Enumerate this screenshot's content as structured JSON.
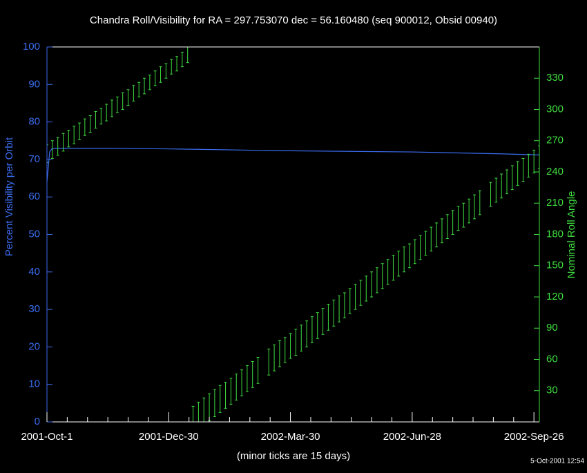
{
  "chart_data": {
    "type": "line",
    "title": "Chandra Roll/Visibility for RA = 297.753070 dec = 56.160480 (seq 900012, Obsid 00940)",
    "xlabel": "(minor ticks are 15 days)",
    "ylabel": "Percent Visibility per Orbit",
    "y2label": "Nominal Roll Angle",
    "footnote": "5-Oct-2001 12:54",
    "xlim": [
      "2001-10-01",
      "2002-09-30"
    ],
    "xticks": [
      {
        "value": "2001-10-01",
        "label": "2001-Oct-1"
      },
      {
        "value": "2001-12-30",
        "label": "2001-Dec-30"
      },
      {
        "value": "2002-03-30",
        "label": "2002-Mar-30"
      },
      {
        "value": "2002-06-28",
        "label": "2002-Jun-28"
      },
      {
        "value": "2002-09-26",
        "label": "2002-Sep-26"
      }
    ],
    "xminor_ticks": [
      "2001-10-16",
      "2001-10-31",
      "2001-11-15",
      "2001-11-30",
      "2001-12-15",
      "2002-01-14",
      "2002-01-29",
      "2002-02-13",
      "2002-02-28",
      "2002-03-15",
      "2002-04-14",
      "2002-04-29",
      "2002-05-14",
      "2002-05-29",
      "2002-06-13",
      "2002-07-13",
      "2002-07-28",
      "2002-08-12",
      "2002-08-27",
      "2002-09-11"
    ],
    "ylim": [
      0,
      100
    ],
    "yticks": [
      0,
      10,
      20,
      30,
      40,
      50,
      60,
      70,
      80,
      90,
      100
    ],
    "y2lim": [
      0,
      360
    ],
    "y2ticks": [
      30,
      60,
      90,
      120,
      150,
      180,
      210,
      240,
      270,
      300,
      330
    ],
    "y_color": "#3b6df0",
    "y2_color": "#3fdc3f",
    "series": [
      {
        "type": "line",
        "axis": "y",
        "color": "#3b6df0",
        "x": [
          "2001-10-01",
          "2001-10-03",
          "2001-10-05",
          "2001-11-15",
          "2002-01-01",
          "2002-03-30",
          "2002-06-28",
          "2002-09-01",
          "2002-09-30"
        ],
        "values": [
          64,
          72,
          73,
          73,
          72.8,
          72.3,
          72,
          71.5,
          71.2
        ]
      },
      {
        "type": "range",
        "axis": "y2",
        "color": "#3fdc3f",
        "x": [
          "2001-10-01",
          "2001-10-05",
          "2001-10-09",
          "2001-10-13",
          "2001-10-17",
          "2001-10-21",
          "2001-10-25",
          "2001-10-29",
          "2001-11-02",
          "2001-11-06",
          "2001-11-10",
          "2001-11-14",
          "2001-11-18",
          "2001-11-22",
          "2001-11-26",
          "2001-11-30",
          "2001-12-04",
          "2001-12-08",
          "2001-12-12",
          "2001-12-16",
          "2001-12-20",
          "2001-12-24",
          "2001-12-28",
          "2002-01-01",
          "2002-01-05",
          "2002-01-09",
          "2002-01-13",
          "2002-01-17",
          "2002-01-21",
          "2002-01-25",
          "2002-01-29",
          "2002-02-02",
          "2002-02-06",
          "2002-02-10",
          "2002-02-14",
          "2002-02-18",
          "2002-02-22",
          "2002-02-26",
          "2002-03-02",
          "2002-03-06",
          "2002-03-14",
          "2002-03-18",
          "2002-03-22",
          "2002-03-26",
          "2002-03-30",
          "2002-04-03",
          "2002-04-07",
          "2002-04-11",
          "2002-04-15",
          "2002-04-19",
          "2002-04-23",
          "2002-04-27",
          "2002-05-01",
          "2002-05-05",
          "2002-05-09",
          "2002-05-13",
          "2002-05-17",
          "2002-05-21",
          "2002-05-25",
          "2002-05-29",
          "2002-06-02",
          "2002-06-06",
          "2002-06-10",
          "2002-06-14",
          "2002-06-18",
          "2002-06-22",
          "2002-06-26",
          "2002-06-30",
          "2002-07-04",
          "2002-07-08",
          "2002-07-12",
          "2002-07-16",
          "2002-07-20",
          "2002-07-24",
          "2002-07-28",
          "2002-08-01",
          "2002-08-05",
          "2002-08-09",
          "2002-08-13",
          "2002-08-17",
          "2002-08-25",
          "2002-08-29",
          "2002-09-02",
          "2002-09-06",
          "2002-09-10",
          "2002-09-14",
          "2002-09-18",
          "2002-09-22",
          "2002-09-26",
          "2002-09-30"
        ],
        "low": [
          249,
          253,
          256,
          260,
          264,
          267,
          271,
          275,
          278,
          282,
          286,
          289,
          293,
          297,
          300,
          304,
          308,
          312,
          315,
          319,
          323,
          326,
          330,
          334,
          337,
          341,
          345,
          0,
          0,
          0,
          1,
          5,
          9,
          13,
          17,
          21,
          25,
          29,
          33,
          37,
          45,
          49,
          53,
          57,
          61,
          64,
          68,
          72,
          76,
          80,
          84,
          88,
          92,
          96,
          100,
          104,
          108,
          112,
          116,
          120,
          124,
          128,
          132,
          136,
          140,
          144,
          148,
          152,
          156,
          160,
          164,
          168,
          172,
          176,
          180,
          184,
          187,
          191,
          195,
          199,
          207,
          211,
          215,
          219,
          223,
          227,
          231,
          235,
          239,
          243
        ],
        "high": [
          266,
          270,
          273,
          277,
          280,
          284,
          287,
          291,
          294,
          298,
          301,
          305,
          309,
          312,
          316,
          319,
          323,
          326,
          330,
          333,
          337,
          341,
          344,
          348,
          351,
          355,
          360,
          15,
          19,
          23,
          27,
          31,
          35,
          38,
          42,
          46,
          50,
          54,
          58,
          62,
          70,
          74,
          78,
          81,
          85,
          89,
          93,
          97,
          101,
          105,
          109,
          113,
          117,
          121,
          124,
          128,
          132,
          136,
          140,
          144,
          148,
          152,
          156,
          160,
          164,
          168,
          171,
          175,
          179,
          183,
          187,
          191,
          195,
          199,
          203,
          207,
          210,
          214,
          218,
          222,
          230,
          234,
          238,
          242,
          246,
          250,
          253,
          257,
          261,
          265
        ]
      }
    ]
  }
}
